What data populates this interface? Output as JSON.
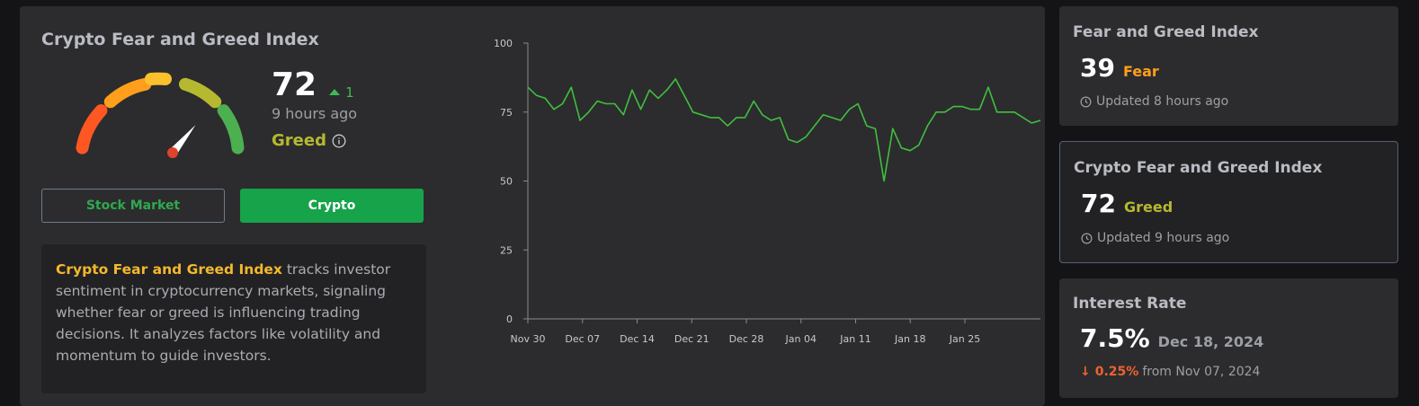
{
  "main": {
    "title": "Crypto Fear and Greed Index",
    "score": "72",
    "change": "1",
    "updated": "9 hours ago",
    "label": "Greed",
    "tabs": {
      "stock": "Stock Market",
      "crypto": "Crypto"
    },
    "description": {
      "highlight": "Crypto Fear and Greed Index",
      "text": " tracks investor sentiment in cryptocurrency markets, signaling whether fear or greed is influencing trading decisions. It analyzes factors like volatility and momentum to guide investors."
    },
    "gauge_value": 72,
    "colors": {
      "extreme_fear": "#ff5722",
      "fear": "#ff9f1c",
      "neutral": "#fbc02d",
      "greed": "#b6b92f",
      "extreme_greed": "#4caf50",
      "line": "#3fbf3f"
    }
  },
  "chart_data": {
    "type": "line",
    "ylim": [
      0,
      100
    ],
    "yticks": [
      "0",
      "25",
      "50",
      "75",
      "100"
    ],
    "xticks": [
      "Nov 30",
      "Dec 07",
      "Dec 14",
      "Dec 21",
      "Dec 28",
      "Jan 04",
      "Jan 11",
      "Jan 18",
      "Jan 25"
    ],
    "values": [
      84,
      81,
      80,
      76,
      78,
      84,
      72,
      75,
      79,
      78,
      78,
      74,
      83,
      76,
      83,
      80,
      83,
      87,
      81,
      75,
      74,
      73,
      73,
      70,
      73,
      73,
      79,
      74,
      72,
      73,
      65,
      64,
      66,
      70,
      74,
      73,
      72,
      76,
      78,
      70,
      69,
      50,
      69,
      62,
      61,
      63,
      70,
      75,
      75,
      77,
      77,
      76,
      76,
      84,
      75,
      75,
      75,
      73,
      71,
      72
    ]
  },
  "side_cards": [
    {
      "title": "Fear and Greed Index",
      "value": "39",
      "sub": "Fear",
      "sub_color": "#ff9f1c",
      "footer": "Updated 8 hours ago"
    },
    {
      "title": "Crypto Fear and Greed Index",
      "value": "72",
      "sub": "Greed",
      "sub_color": "#b6b92f",
      "footer": "Updated 9 hours ago"
    },
    {
      "title": "Interest Rate",
      "value": "7.5%",
      "sub": "Dec 18, 2024",
      "sub_color": "#9c9fa5",
      "change": "0.25%",
      "footer": "from Nov 07, 2024"
    }
  ]
}
